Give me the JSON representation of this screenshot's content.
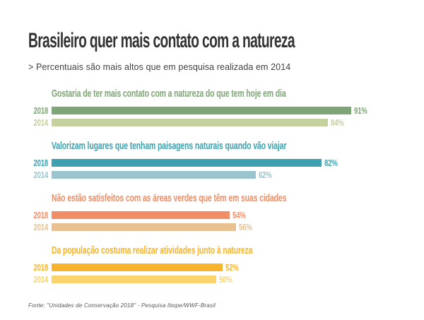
{
  "header": {
    "title": "Brasileiro quer mais contato com a natureza",
    "subtitle": "> Percentuais são mais altos que em pesquisa realizada em 2014"
  },
  "footer": {
    "source": "Fonte: \"Unidades de Conservação 2018\" - Pesquisa Ibope/WWF-Brasil"
  },
  "chart_data": {
    "type": "bar",
    "orientation": "horizontal",
    "unit": "%",
    "xlim": [
      0,
      100
    ],
    "grid": false,
    "legend": false,
    "categories": [
      "2018",
      "2014"
    ],
    "groups": [
      {
        "title": "Gostaria de ter mais contato com a natureza do que tem hoje em dia",
        "title_color": "#7ea575",
        "rows": [
          {
            "year": "2018",
            "value": 91,
            "label": "91%",
            "color": "#7ea575"
          },
          {
            "year": "2014",
            "value": 84,
            "label": "84%",
            "color": "#c6d09f"
          }
        ]
      },
      {
        "title": "Valorizam lugares que tenham paisagens naturais quando vão viajar",
        "title_color": "#3da1af",
        "rows": [
          {
            "year": "2018",
            "value": 82,
            "label": "82%",
            "color": "#3da1af"
          },
          {
            "year": "2014",
            "value": 62,
            "label": "62%",
            "color": "#9ac5cf"
          }
        ]
      },
      {
        "title": "Não estão satisfeitos com as áreas verdes que têm em suas cidades",
        "title_color": "#f08e67",
        "rows": [
          {
            "year": "2018",
            "value": 54,
            "label": "54%",
            "color": "#f08e67"
          },
          {
            "year": "2014",
            "value": 56,
            "label": "56%",
            "color": "#e9c190"
          }
        ]
      },
      {
        "title": "Da população costuma realizar atividades junto à natureza",
        "title_color": "#f7b42c",
        "rows": [
          {
            "year": "2018",
            "value": 52,
            "label": "52%",
            "color": "#f7b42c"
          },
          {
            "year": "2014",
            "value": 50,
            "label": "50%",
            "color": "#fcd46e"
          }
        ]
      }
    ]
  }
}
